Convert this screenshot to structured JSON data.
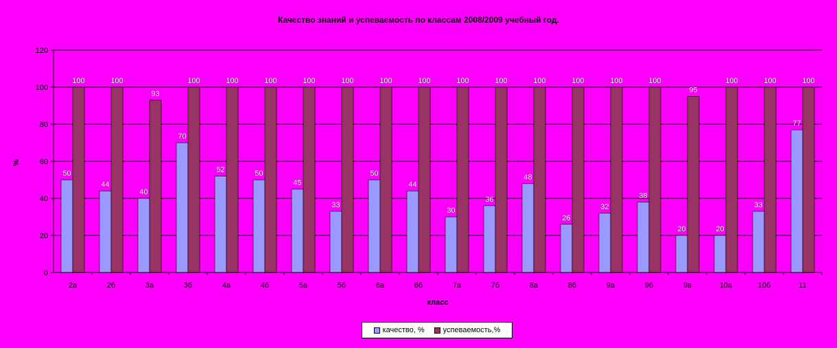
{
  "chart_data": {
    "type": "bar",
    "title": "Качество знаний и успеваемость  по классам 2008/2009 учебный год.",
    "xlabel": "класс",
    "ylabel": "%",
    "ylim": [
      0,
      120
    ],
    "yticks": [
      0,
      20,
      40,
      60,
      80,
      100,
      120
    ],
    "grid": true,
    "legend_position": "bottom",
    "categories": [
      "2а",
      "2б",
      "3а",
      "3б",
      "4а",
      "4б",
      "5а",
      "5б",
      "6а",
      "6б",
      "7а",
      "7б",
      "8а",
      "8б",
      "9а",
      "9б",
      "9в",
      "10а",
      "10б",
      "11"
    ],
    "series": [
      {
        "name": "качество, %",
        "color": "#9999FF",
        "values": [
          50,
          44,
          40,
          70,
          52,
          50,
          45,
          33,
          50,
          44,
          30,
          36,
          48,
          26,
          32,
          38,
          20,
          20,
          33,
          77
        ]
      },
      {
        "name": "успеваемость,%",
        "color": "#993366",
        "values": [
          100,
          100,
          93,
          100,
          100,
          100,
          100,
          100,
          100,
          100,
          100,
          100,
          100,
          100,
          100,
          100,
          95,
          100,
          100,
          100
        ]
      }
    ]
  }
}
